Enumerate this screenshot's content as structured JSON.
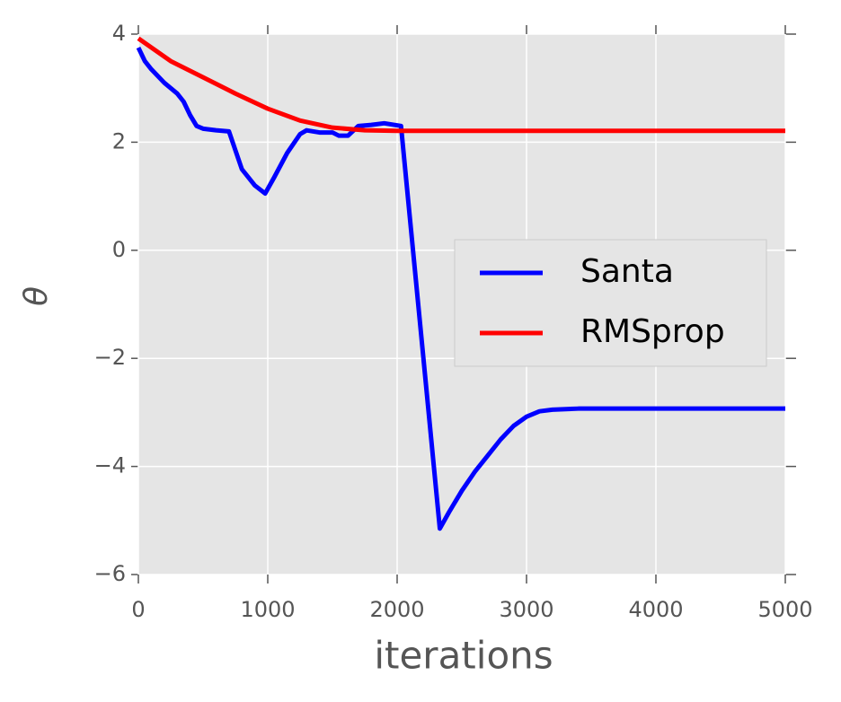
{
  "chart_data": {
    "type": "line",
    "x_label": "iterations",
    "y_label": "θ",
    "xlim": [
      0,
      5000
    ],
    "ylim": [
      -6,
      4
    ],
    "xticks": [
      0,
      1000,
      2000,
      3000,
      4000,
      5000
    ],
    "yticks": [
      {
        "value": -6,
        "label": "−6"
      },
      {
        "value": -4,
        "label": "−4"
      },
      {
        "value": -2,
        "label": "−2"
      },
      0,
      2,
      4
    ],
    "grid": true,
    "legend": "center right",
    "series": [
      {
        "name": "Santa",
        "color": "#0000ff",
        "x": [
          0,
          50,
          100,
          200,
          300,
          350,
          400,
          450,
          500,
          600,
          700,
          800,
          900,
          980,
          1050,
          1150,
          1250,
          1300,
          1400,
          1500,
          1550,
          1620,
          1700,
          1800,
          1900,
          2030,
          2330,
          2400,
          2500,
          2600,
          2700,
          2800,
          2900,
          3000,
          3100,
          3200,
          3400,
          4000,
          5000
        ],
        "values": [
          3.75,
          3.5,
          3.35,
          3.1,
          2.9,
          2.75,
          2.5,
          2.3,
          2.25,
          2.22,
          2.2,
          1.5,
          1.2,
          1.05,
          1.35,
          1.8,
          2.15,
          2.22,
          2.18,
          2.18,
          2.12,
          2.12,
          2.3,
          2.32,
          2.35,
          2.3,
          -5.15,
          -4.85,
          -4.45,
          -4.1,
          -3.8,
          -3.5,
          -3.25,
          -3.08,
          -2.98,
          -2.95,
          -2.93,
          -2.93,
          -2.93
        ]
      },
      {
        "name": "RMSprop",
        "color": "#ff0000",
        "x": [
          0,
          250,
          500,
          750,
          1000,
          1250,
          1500,
          1750,
          2000,
          5000
        ],
        "values": [
          3.92,
          3.5,
          3.2,
          2.9,
          2.62,
          2.4,
          2.27,
          2.22,
          2.21,
          2.21
        ]
      }
    ]
  }
}
